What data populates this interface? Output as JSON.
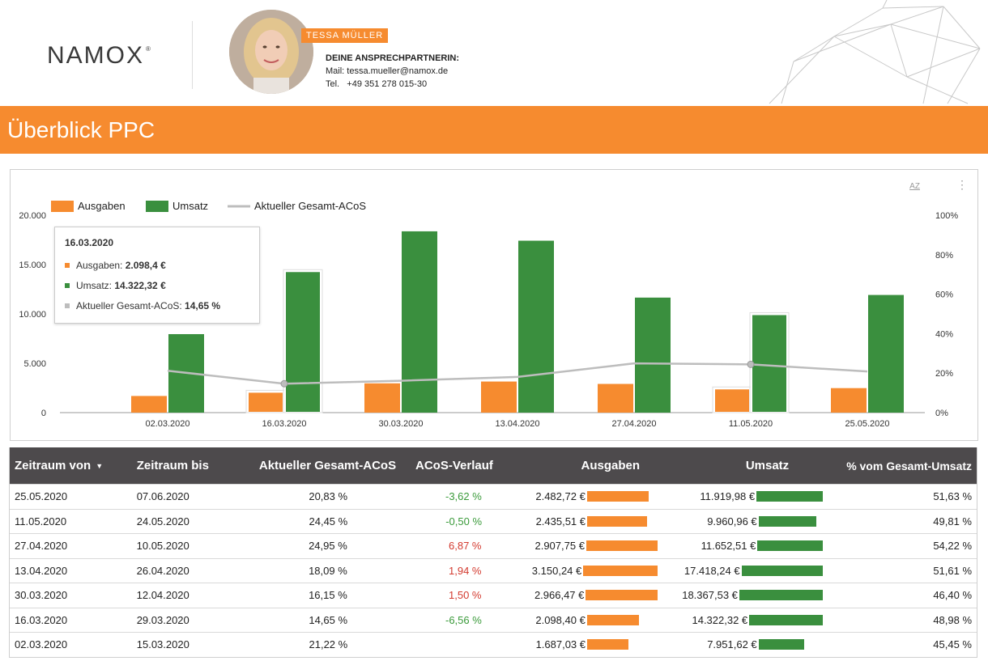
{
  "header": {
    "logo_text": "NAMOX",
    "logo_reg": "®",
    "name_badge": "TESSA MÜLLER",
    "contact_title": "DEINE ANSPRECHPARTNERIN:",
    "contact_mail": "Mail: tessa.mueller@namox.de",
    "contact_tel": "Tel.   +49 351 278 015-30"
  },
  "page_title": "Überblick PPC",
  "colors": {
    "orange": "#f68b2f",
    "green": "#3a8f3e",
    "grey": "#bdbdbd",
    "header_dark": "#4d4a4c"
  },
  "chart_data": {
    "type": "bar",
    "categories": [
      "02.03.2020",
      "16.03.2020",
      "30.03.2020",
      "13.04.2020",
      "27.04.2020",
      "11.05.2020",
      "25.05.2020"
    ],
    "series": [
      {
        "name": "Ausgaben",
        "type": "bar",
        "axis": "left",
        "values": [
          1687.03,
          2098.4,
          2966.47,
          3150.24,
          2907.75,
          2435.51,
          2482.72
        ]
      },
      {
        "name": "Umsatz",
        "type": "bar",
        "axis": "left",
        "values": [
          7951.62,
          14322.32,
          18367.53,
          17418.24,
          11652.51,
          9960.96,
          11919.98
        ]
      },
      {
        "name": "Aktueller Gesamt-ACoS",
        "type": "line",
        "axis": "right",
        "values": [
          21.22,
          14.65,
          16.15,
          18.09,
          24.95,
          24.45,
          20.83
        ]
      }
    ],
    "y_left": {
      "ticks": [
        "0",
        "5.000",
        "10.000",
        "15.000",
        "20.000"
      ],
      "range": [
        0,
        20000
      ]
    },
    "y_right": {
      "ticks": [
        "0%",
        "20%",
        "40%",
        "60%",
        "80%",
        "100%"
      ],
      "range": [
        0,
        100
      ]
    },
    "legend_position": "top-left",
    "grid": false
  },
  "tooltip": {
    "date": "16.03.2020",
    "rows": [
      {
        "label": "Ausgaben: ",
        "value": "2.098,4 €"
      },
      {
        "label": "Umsatz: ",
        "value": "14.322,32 €"
      },
      {
        "label": "Aktueller Gesamt-ACoS: ",
        "value": "14,65 %"
      }
    ]
  },
  "card_icons": {
    "sort": "AZ",
    "more": "⋮"
  },
  "table": {
    "headers": [
      "Zeitraum von",
      "Zeitraum bis",
      "Aktueller Gesamt-ACoS",
      "ACoS-Verlauf",
      "Ausgaben",
      "Umsatz",
      "% vom Gesamt-Umsatz"
    ],
    "sort_indicator": "▼",
    "rows": [
      {
        "from": "25.05.2020",
        "to": "07.06.2020",
        "acos": "20,83 %",
        "trend": "-3,62 %",
        "trend_dir": "pos",
        "spend": "2.482,72 €",
        "spend_v": 2482.72,
        "rev": "11.919,98 €",
        "rev_v": 11919.98,
        "share": "51,63 %"
      },
      {
        "from": "11.05.2020",
        "to": "24.05.2020",
        "acos": "24,45 %",
        "trend": "-0,50 %",
        "trend_dir": "pos",
        "spend": "2.435,51 €",
        "spend_v": 2435.51,
        "rev": "9.960,96 €",
        "rev_v": 9960.96,
        "share": "49,81 %"
      },
      {
        "from": "27.04.2020",
        "to": "10.05.2020",
        "acos": "24,95 %",
        "trend": "6,87 %",
        "trend_dir": "neg",
        "spend": "2.907,75 €",
        "spend_v": 2907.75,
        "rev": "11.652,51 €",
        "rev_v": 11652.51,
        "share": "54,22 %"
      },
      {
        "from": "13.04.2020",
        "to": "26.04.2020",
        "acos": "18,09 %",
        "trend": "1,94 %",
        "trend_dir": "neg",
        "spend": "3.150,24 €",
        "spend_v": 3150.24,
        "rev": "17.418,24 €",
        "rev_v": 17418.24,
        "share": "51,61 %"
      },
      {
        "from": "30.03.2020",
        "to": "12.04.2020",
        "acos": "16,15 %",
        "trend": "1,50 %",
        "trend_dir": "neg",
        "spend": "2.966,47 €",
        "spend_v": 2966.47,
        "rev": "18.367,53 €",
        "rev_v": 18367.53,
        "share": "46,40 %"
      },
      {
        "from": "16.03.2020",
        "to": "29.03.2020",
        "acos": "14,65 %",
        "trend": "-6,56 %",
        "trend_dir": "pos",
        "spend": "2.098,40 €",
        "spend_v": 2098.4,
        "rev": "14.322,32 €",
        "rev_v": 14322.32,
        "share": "48,98 %"
      },
      {
        "from": "02.03.2020",
        "to": "15.03.2020",
        "acos": "21,22 %",
        "trend": "",
        "trend_dir": "",
        "spend": "1.687,03 €",
        "spend_v": 1687.03,
        "rev": "7.951,62 €",
        "rev_v": 7951.62,
        "share": "45,45 %"
      }
    ]
  }
}
